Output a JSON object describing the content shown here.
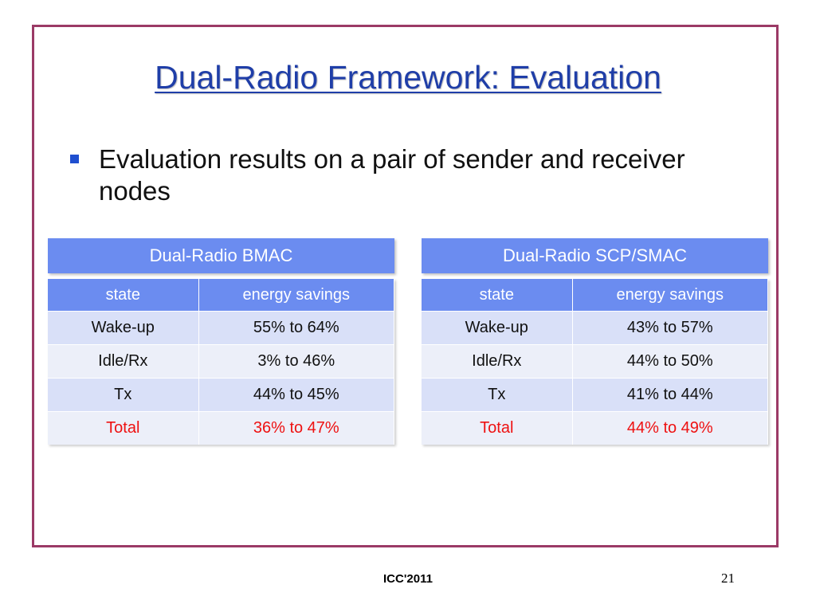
{
  "slide": {
    "title": "Dual-Radio Framework: Evaluation",
    "bullet": "Evaluation results on a pair of sender and receiver nodes",
    "footer": "ICC'2011",
    "page_number": "21"
  },
  "tables": [
    {
      "heading": "Dual-Radio BMAC",
      "columns": [
        "state",
        "energy savings"
      ],
      "rows": [
        [
          "Wake-up",
          "55% to 64%"
        ],
        [
          "Idle/Rx",
          "3% to 46%"
        ],
        [
          "Tx",
          "44% to 45%"
        ],
        [
          "Total",
          "36% to 47%"
        ]
      ]
    },
    {
      "heading": "Dual-Radio SCP/SMAC",
      "columns": [
        "state",
        "energy savings"
      ],
      "rows": [
        [
          "Wake-up",
          "43% to 57%"
        ],
        [
          "Idle/Rx",
          "44% to 50%"
        ],
        [
          "Tx",
          "41% to 44%"
        ],
        [
          "Total",
          "44% to 49%"
        ]
      ]
    }
  ],
  "colors": {
    "frame": "#9b3a66",
    "title": "#1f3ea8",
    "header": "#6b8cf0",
    "total_text": "#ee1111"
  }
}
